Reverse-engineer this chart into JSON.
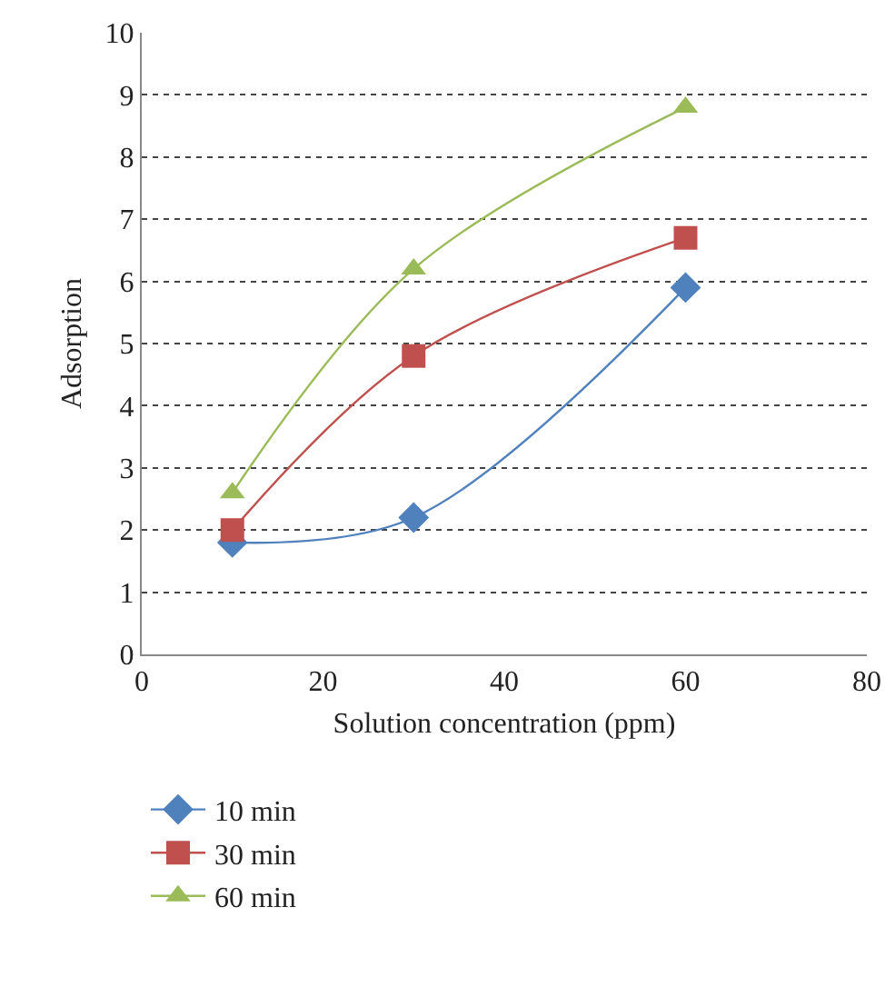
{
  "chart_data": {
    "type": "line",
    "xlabel": "Solution concentration (ppm)",
    "ylabel": "Adsorption",
    "x": [
      10,
      30,
      60
    ],
    "series": [
      {
        "name": "10 min",
        "color": "#4f81bd",
        "marker": "diamond",
        "values": [
          1.8,
          2.2,
          5.9
        ]
      },
      {
        "name": "30 min",
        "color": "#c0504d",
        "marker": "square",
        "values": [
          2.0,
          4.8,
          6.7
        ]
      },
      {
        "name": "60 min",
        "color": "#9bbb59",
        "marker": "triangle",
        "values": [
          2.6,
          6.2,
          8.8
        ]
      }
    ],
    "xlim": [
      0,
      80
    ],
    "xticks": [
      0,
      20,
      40,
      60,
      80
    ],
    "ylim": [
      0,
      10
    ],
    "yticks": [
      0,
      1,
      2,
      3,
      4,
      5,
      6,
      7,
      8,
      9,
      10
    ],
    "grid": "y",
    "legend": "bottom",
    "line_style": "solid"
  }
}
